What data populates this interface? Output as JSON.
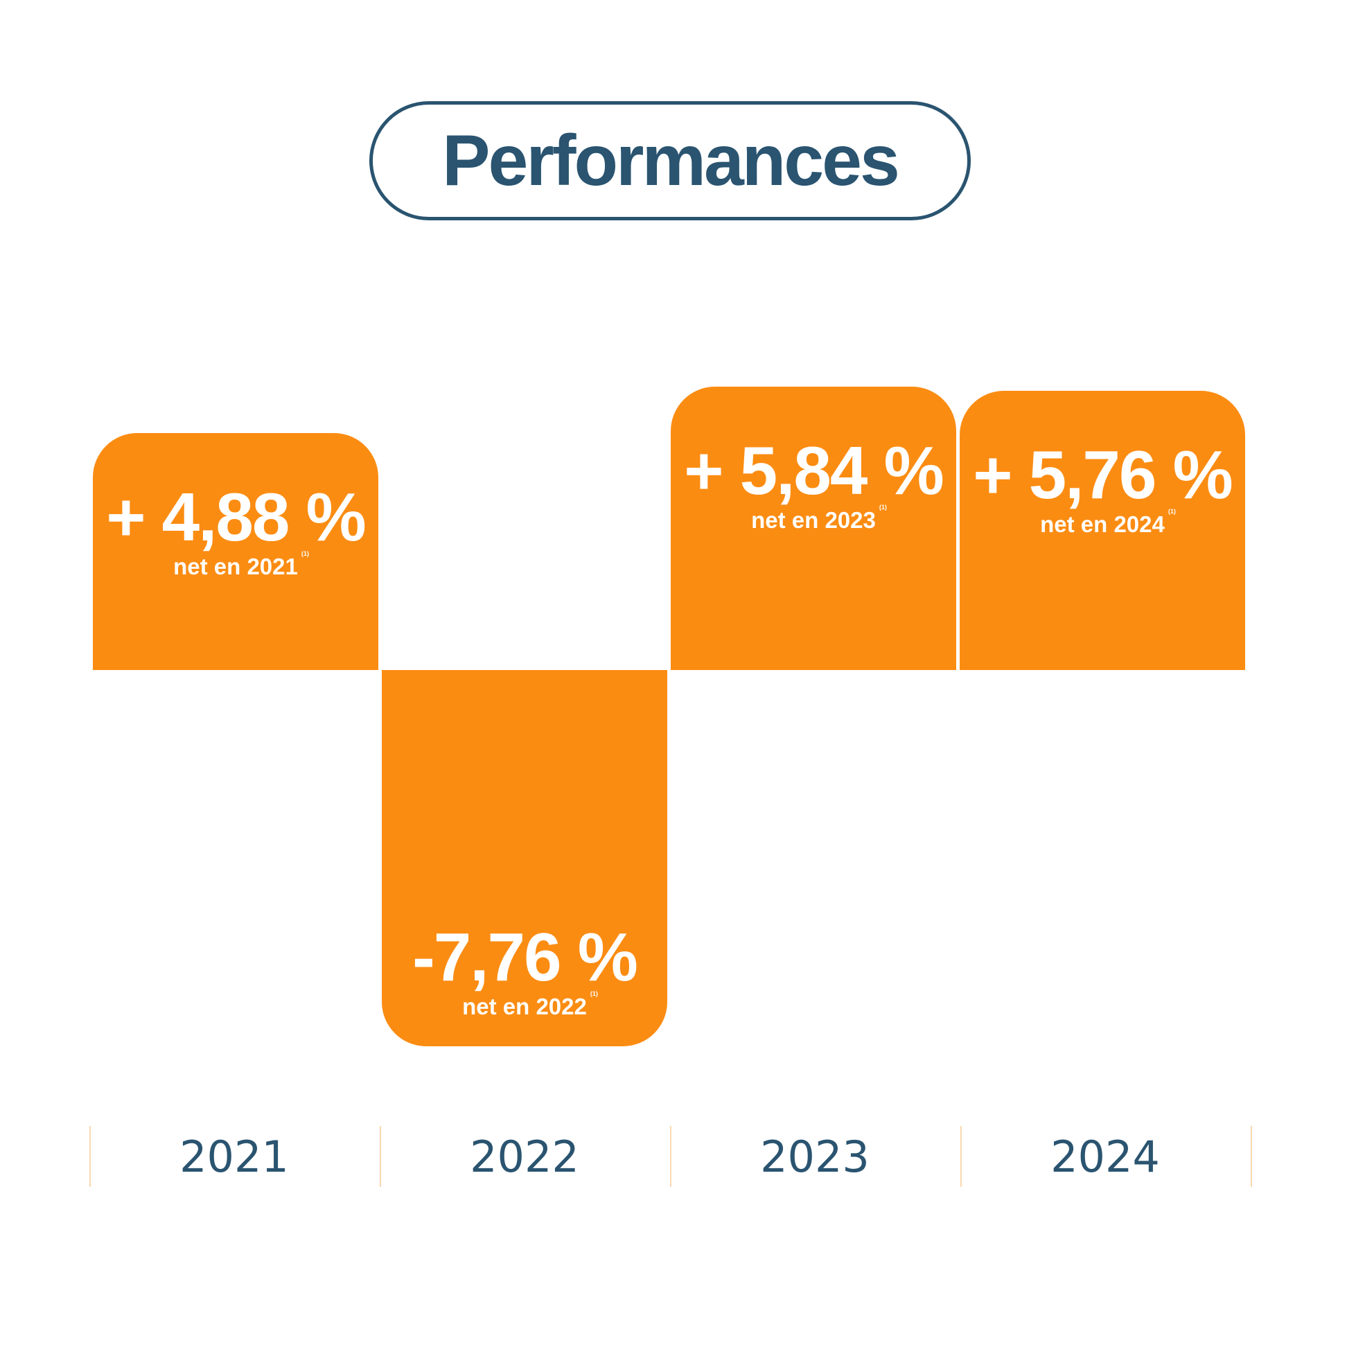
{
  "title": "Performances",
  "colors": {
    "bar": "#fb8c12",
    "title": "#2a5470",
    "separator": "#f9d9b0",
    "label": "#ffffff"
  },
  "chart_data": {
    "type": "bar",
    "categories": [
      "2021",
      "2022",
      "2023",
      "2024"
    ],
    "values": [
      4.88,
      -7.76,
      5.84,
      5.76
    ],
    "data_labels": [
      "+ 4,88 %",
      "-7,76 %",
      "+ 5,84 %",
      "+ 5,76 %"
    ],
    "sub_labels": [
      "net en 2021",
      "net en 2022",
      "net en 2023",
      "net en 2024"
    ],
    "footnote_marker": "(1)",
    "grid": false,
    "legend": "none"
  }
}
